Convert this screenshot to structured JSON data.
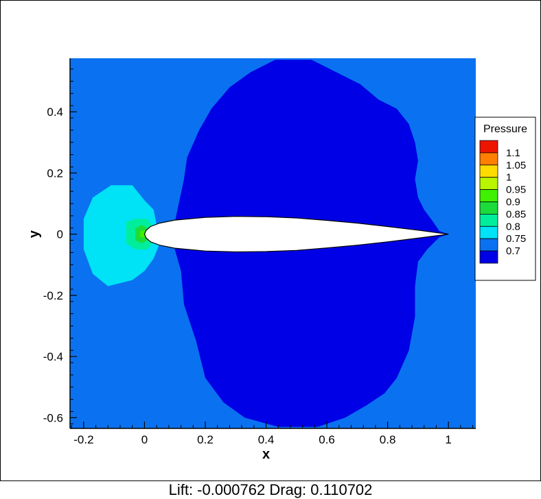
{
  "chart_data": {
    "type": "contour",
    "xlabel": "x",
    "ylabel": "y",
    "xlim": [
      -0.245,
      1.09
    ],
    "ylim": [
      -0.635,
      0.575
    ],
    "x_ticks": [
      {
        "value": -0.2,
        "label": "-0.2"
      },
      {
        "value": 0,
        "label": "0"
      },
      {
        "value": 0.2,
        "label": "0.2"
      },
      {
        "value": 0.4,
        "label": "0.4"
      },
      {
        "value": 0.6,
        "label": "0.6"
      },
      {
        "value": 0.8,
        "label": "0.8"
      },
      {
        "value": 1,
        "label": "1"
      }
    ],
    "y_ticks": [
      {
        "value": 0.4,
        "label": "0.4"
      },
      {
        "value": 0.2,
        "label": "0.2"
      },
      {
        "value": 0,
        "label": "0"
      },
      {
        "value": -0.2,
        "label": "-0.2"
      },
      {
        "value": -0.4,
        "label": "-0.4"
      },
      {
        "value": -0.6,
        "label": "-0.6"
      }
    ],
    "legend": {
      "title": "Pressure",
      "placement": "right",
      "levels": [
        {
          "label": "1.1",
          "color": "#ee1500"
        },
        {
          "label": "1.05",
          "color": "#ff7f00"
        },
        {
          "label": "1",
          "color": "#ffdc00"
        },
        {
          "label": "0.95",
          "color": "#b9f400"
        },
        {
          "label": "0.9",
          "color": "#3ff000"
        },
        {
          "label": "0.85",
          "color": "#1cdc3c"
        },
        {
          "label": "0.8",
          "color": "#00ee9c"
        },
        {
          "label": "0.75",
          "color": "#00e2f6"
        },
        {
          "label": "0.7",
          "color": "#0a72f0"
        },
        {
          "label": "",
          "color": "#0000e6"
        }
      ]
    },
    "regions": [
      {
        "level": "background",
        "color": "#0a72f0"
      },
      {
        "level": "0.7",
        "color": "#0000e6",
        "outline": [
          [
            0.1,
            0.04
          ],
          [
            0.13,
            0.18
          ],
          [
            0.14,
            0.25
          ],
          [
            0.18,
            0.34
          ],
          [
            0.22,
            0.41
          ],
          [
            0.28,
            0.48
          ],
          [
            0.35,
            0.53
          ],
          [
            0.43,
            0.57
          ],
          [
            0.55,
            0.57
          ],
          [
            0.63,
            0.53
          ],
          [
            0.71,
            0.49
          ],
          [
            0.77,
            0.44
          ],
          [
            0.83,
            0.41
          ],
          [
            0.87,
            0.36
          ],
          [
            0.89,
            0.3
          ],
          [
            0.9,
            0.24
          ],
          [
            0.89,
            0.18
          ],
          [
            0.9,
            0.12
          ],
          [
            0.92,
            0.08
          ],
          [
            0.95,
            0.04
          ],
          [
            0.97,
            0.01
          ],
          [
            1.0,
            0.0
          ],
          [
            0.97,
            -0.01
          ],
          [
            0.93,
            -0.05
          ],
          [
            0.9,
            -0.09
          ],
          [
            0.89,
            -0.17
          ],
          [
            0.89,
            -0.27
          ],
          [
            0.87,
            -0.38
          ],
          [
            0.83,
            -0.47
          ],
          [
            0.79,
            -0.52
          ],
          [
            0.73,
            -0.56
          ],
          [
            0.66,
            -0.6
          ],
          [
            0.57,
            -0.63
          ],
          [
            0.44,
            -0.63
          ],
          [
            0.33,
            -0.6
          ],
          [
            0.26,
            -0.55
          ],
          [
            0.2,
            -0.47
          ],
          [
            0.17,
            -0.35
          ],
          [
            0.13,
            -0.23
          ],
          [
            0.12,
            -0.12
          ],
          [
            0.1,
            -0.05
          ]
        ]
      },
      {
        "level": "0.75",
        "color": "#00e2f6",
        "outline": [
          [
            -0.11,
            0.16
          ],
          [
            -0.17,
            0.12
          ],
          [
            -0.2,
            0.05
          ],
          [
            -0.2,
            -0.05
          ],
          [
            -0.17,
            -0.13
          ],
          [
            -0.12,
            -0.17
          ],
          [
            -0.04,
            -0.15
          ],
          [
            0.0,
            -0.12
          ],
          [
            0.03,
            -0.08
          ],
          [
            0.05,
            -0.03
          ],
          [
            0.04,
            0.03
          ],
          [
            0.03,
            0.08
          ],
          [
            0.0,
            0.11
          ],
          [
            -0.04,
            0.16
          ]
        ]
      },
      {
        "level": "0.8",
        "color": "#00ee9c",
        "outline": [
          [
            -0.06,
            0.04
          ],
          [
            -0.06,
            -0.03
          ],
          [
            -0.03,
            -0.05
          ],
          [
            0.01,
            -0.05
          ],
          [
            0.03,
            -0.02
          ],
          [
            0.03,
            0.02
          ],
          [
            0.01,
            0.05
          ],
          [
            -0.03,
            0.05
          ]
        ]
      },
      {
        "level": "0.85",
        "color": "#1cdc3c",
        "outline": [
          [
            -0.03,
            0.02
          ],
          [
            -0.03,
            -0.02
          ],
          [
            -0.01,
            -0.03
          ],
          [
            0.01,
            -0.02
          ],
          [
            0.01,
            0.02
          ],
          [
            -0.01,
            0.03
          ]
        ]
      },
      {
        "level": "0.9",
        "color": "#3ff000",
        "outline": [
          [
            -0.015,
            0.01
          ],
          [
            -0.015,
            -0.01
          ],
          [
            0.0,
            -0.012
          ],
          [
            0.006,
            0.0
          ],
          [
            0.0,
            0.012
          ]
        ]
      }
    ],
    "airfoil": {
      "fill": "#ffffff",
      "upper": [
        [
          0.0,
          0.0
        ],
        [
          0.005,
          0.012
        ],
        [
          0.02,
          0.025
        ],
        [
          0.05,
          0.036
        ],
        [
          0.1,
          0.046
        ],
        [
          0.2,
          0.055
        ],
        [
          0.3,
          0.058
        ],
        [
          0.4,
          0.057
        ],
        [
          0.5,
          0.053
        ],
        [
          0.6,
          0.045
        ],
        [
          0.7,
          0.036
        ],
        [
          0.8,
          0.025
        ],
        [
          0.9,
          0.013
        ],
        [
          1.0,
          0.0
        ]
      ],
      "lower": [
        [
          1.0,
          0.0
        ],
        [
          0.9,
          -0.013
        ],
        [
          0.8,
          -0.025
        ],
        [
          0.7,
          -0.036
        ],
        [
          0.6,
          -0.045
        ],
        [
          0.5,
          -0.053
        ],
        [
          0.4,
          -0.057
        ],
        [
          0.3,
          -0.058
        ],
        [
          0.2,
          -0.055
        ],
        [
          0.1,
          -0.046
        ],
        [
          0.05,
          -0.036
        ],
        [
          0.02,
          -0.025
        ],
        [
          0.005,
          -0.012
        ],
        [
          0.0,
          0.0
        ]
      ]
    }
  },
  "footer": {
    "text": "Lift: -0.000762 Drag: 0.110702"
  }
}
